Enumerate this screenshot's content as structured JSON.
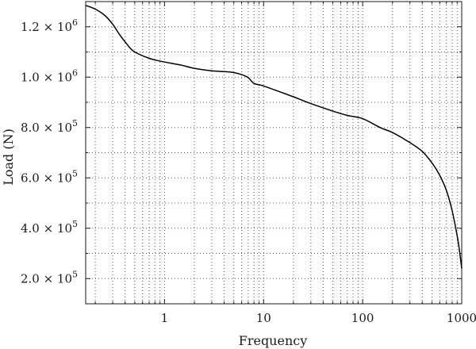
{
  "chart_data": {
    "type": "line",
    "title": "",
    "xlabel": "Frequency",
    "ylabel": "Load (N)",
    "x_scale": "log",
    "xlim": [
      0.16,
      1000
    ],
    "ylim": [
      100000,
      1300000
    ],
    "grid": true,
    "legend": "none",
    "x_ticks": [
      {
        "value": 1,
        "label": "1"
      },
      {
        "value": 10,
        "label": "10"
      },
      {
        "value": 100,
        "label": "100"
      },
      {
        "value": 1000,
        "label": "1000"
      }
    ],
    "y_ticks": [
      {
        "value": 200000,
        "mant": "2.0",
        "exp": "5"
      },
      {
        "value": 400000,
        "mant": "4.0",
        "exp": "5"
      },
      {
        "value": 600000,
        "mant": "6.0",
        "exp": "5"
      },
      {
        "value": 800000,
        "mant": "8.0",
        "exp": "5"
      },
      {
        "value": 1000000,
        "mant": "1.0",
        "exp": "6"
      },
      {
        "value": 1200000,
        "mant": "1.2",
        "exp": "6"
      }
    ],
    "y_tick_base": "× 10",
    "series": [
      {
        "color": "#000000",
        "x": [
          0.16,
          0.2,
          0.25,
          0.3,
          0.35,
          0.4,
          0.45,
          0.5,
          0.6,
          0.7,
          0.8,
          1,
          1.5,
          2,
          3,
          4,
          5,
          6,
          7,
          8,
          10,
          15,
          20,
          30,
          50,
          70,
          100,
          150,
          200,
          300,
          400,
          500,
          600,
          700,
          800,
          900,
          950,
          1000
        ],
        "values": [
          1285000,
          1270000,
          1245000,
          1210000,
          1170000,
          1140000,
          1115000,
          1100000,
          1085000,
          1075000,
          1068000,
          1060000,
          1047000,
          1035000,
          1025000,
          1022000,
          1018000,
          1010000,
          998000,
          975000,
          965000,
          940000,
          922000,
          895000,
          865000,
          848000,
          835000,
          800000,
          780000,
          740000,
          705000,
          660000,
          610000,
          550000,
          470000,
          370000,
          310000,
          240000
        ]
      }
    ]
  }
}
